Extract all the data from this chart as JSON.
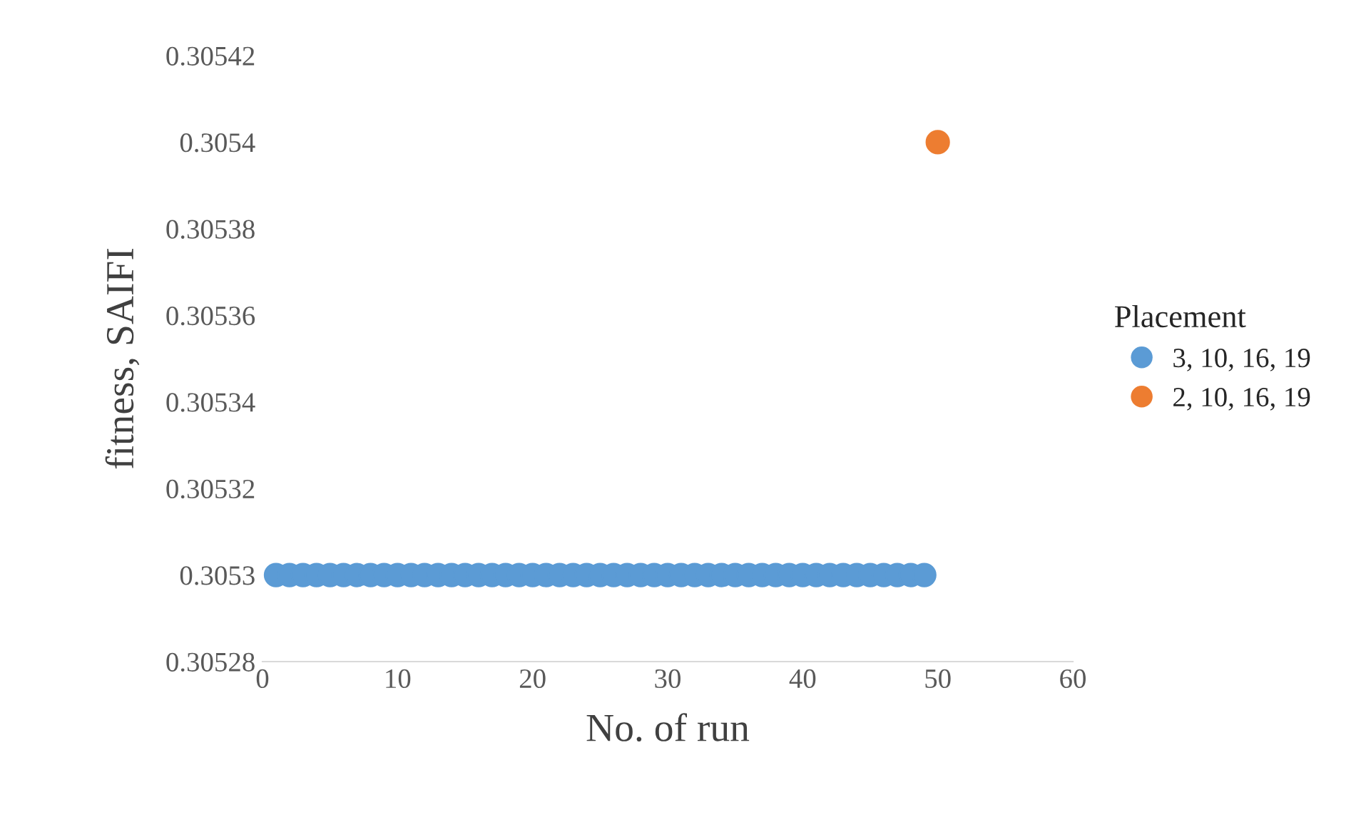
{
  "chart_data": {
    "type": "scatter",
    "xlabel": "No. of run",
    "ylabel": "fitness, SAIFI",
    "legend_title": "Placement",
    "legend": "right",
    "grid": false,
    "marker": "circle",
    "xlim": [
      0,
      60
    ],
    "xticks": [
      0,
      10,
      20,
      30,
      40,
      50,
      60
    ],
    "ylim": [
      0.30528,
      0.30542
    ],
    "yticks": [
      0.30528,
      0.3053,
      0.30532,
      0.30534,
      0.30536,
      0.30538,
      0.3054,
      0.30542
    ],
    "series": [
      {
        "name": "3, 10, 16, 19",
        "color": "#5b9bd5",
        "x": [
          1,
          2,
          3,
          4,
          5,
          6,
          7,
          8,
          9,
          10,
          11,
          12,
          13,
          14,
          15,
          16,
          17,
          18,
          19,
          20,
          21,
          22,
          23,
          24,
          25,
          26,
          27,
          28,
          29,
          30,
          31,
          32,
          33,
          34,
          35,
          36,
          37,
          38,
          39,
          40,
          41,
          42,
          43,
          44,
          45,
          46,
          47,
          48,
          49
        ],
        "values": [
          0.3053,
          0.3053,
          0.3053,
          0.3053,
          0.3053,
          0.3053,
          0.3053,
          0.3053,
          0.3053,
          0.3053,
          0.3053,
          0.3053,
          0.3053,
          0.3053,
          0.3053,
          0.3053,
          0.3053,
          0.3053,
          0.3053,
          0.3053,
          0.3053,
          0.3053,
          0.3053,
          0.3053,
          0.3053,
          0.3053,
          0.3053,
          0.3053,
          0.3053,
          0.3053,
          0.3053,
          0.3053,
          0.3053,
          0.3053,
          0.3053,
          0.3053,
          0.3053,
          0.3053,
          0.3053,
          0.3053,
          0.3053,
          0.3053,
          0.3053,
          0.3053,
          0.3053,
          0.3053,
          0.3053,
          0.3053,
          0.3053
        ]
      },
      {
        "name": "2, 10, 16, 19",
        "color": "#ed7d31",
        "x": [
          50
        ],
        "values": [
          0.3054
        ]
      }
    ]
  }
}
